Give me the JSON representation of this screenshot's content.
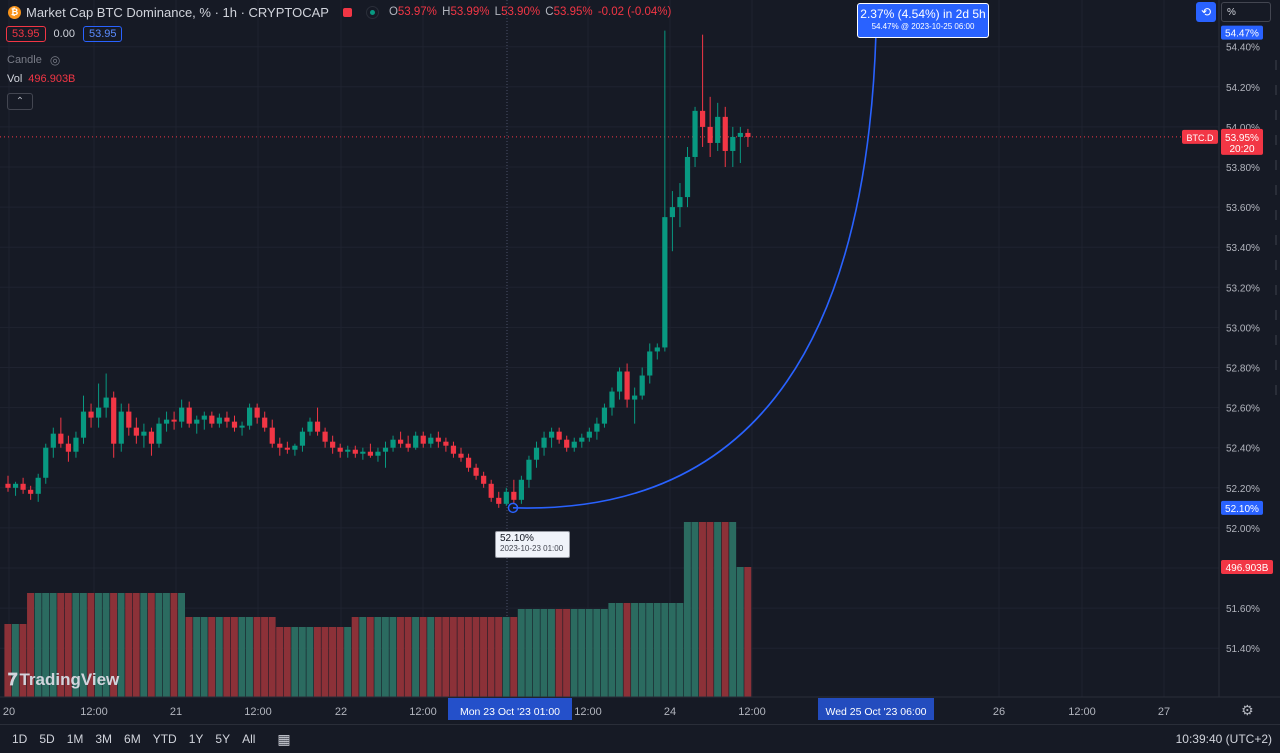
{
  "header": {
    "coin_glyph": "₿",
    "title": "Market Cap BTC Dominance, % · 1h · CRYPTOCAP",
    "ohlc": {
      "o_label": "O",
      "o": "53.97%",
      "h_label": "H",
      "h": "53.99%",
      "l_label": "L",
      "l": "53.90%",
      "c_label": "C",
      "c": "53.95%",
      "change": "-0.02 (-0.04%)"
    }
  },
  "bidask": {
    "bid": "53.95",
    "spread": "0.00",
    "ask": "53.95"
  },
  "legend": {
    "candle_label": "Candle",
    "eye_glyph": "◎",
    "vol_label": "Vol",
    "vol_value": "496.903B",
    "collapse_glyph": "⌃"
  },
  "toolbar": {
    "auto_glyph": "⟲",
    "percent_label": "%"
  },
  "branding": {
    "logo_glyph": "⁷",
    "logo_text": "TradingView"
  },
  "ranges": [
    "1D",
    "5D",
    "1M",
    "3M",
    "6M",
    "YTD",
    "1Y",
    "5Y",
    "All"
  ],
  "calendar_glyph": "📅",
  "clock": "10:39:40 (UTC+2)",
  "gear_glyph": "⚙",
  "measure": {
    "line1": "2.37% (4.54%) in 2d 5h",
    "line2": "54.47% @ 2023-10-25  06:00"
  },
  "tooltip": {
    "line1": "52.10%",
    "line2": "2023-10-23 01:00"
  },
  "colors": {
    "bg": "#161a25",
    "up": "#089981",
    "down": "#f23645",
    "accent": "#2962ff",
    "grid": "#1f2330"
  },
  "chart_data": {
    "type": "candlestick",
    "title": "Market Cap BTC Dominance, % · 1h · CRYPTOCAP",
    "ylim": [
      51.3,
      54.55
    ],
    "y_ticks": [
      "54.40%",
      "54.20%",
      "54.00%",
      "53.80%",
      "53.60%",
      "53.40%",
      "53.20%",
      "53.00%",
      "52.80%",
      "52.60%",
      "52.40%",
      "52.20%",
      "52.00%",
      "51.80%",
      "51.60%",
      "51.40%"
    ],
    "x_ticks": [
      "20",
      "12:00",
      "21",
      "12:00",
      "22",
      "12:00",
      "12:00",
      "24",
      "12:00",
      "26",
      "12:00",
      "27"
    ],
    "price_labels": {
      "top_marker": "54.47%",
      "last_symbol": "BTC.D",
      "last_price": "53.95%",
      "countdown": "20:20",
      "bottom_marker": "52.10%",
      "volume": "496.903B"
    },
    "x_highlights": {
      "start": "Mon 23 Oct '23   01:00",
      "end": "Wed 25 Oct '23   06:00"
    },
    "candles": [
      [
        52.22,
        52.26,
        52.18,
        52.2
      ],
      [
        52.2,
        52.23,
        52.16,
        52.22
      ],
      [
        52.22,
        52.25,
        52.17,
        52.19
      ],
      [
        52.19,
        52.21,
        52.14,
        52.17
      ],
      [
        52.17,
        52.27,
        52.13,
        52.25
      ],
      [
        52.25,
        52.42,
        52.22,
        52.4
      ],
      [
        52.4,
        52.5,
        52.35,
        52.47
      ],
      [
        52.47,
        52.55,
        52.4,
        52.42
      ],
      [
        52.42,
        52.46,
        52.33,
        52.38
      ],
      [
        52.38,
        52.48,
        52.35,
        52.45
      ],
      [
        52.45,
        52.66,
        52.42,
        52.58
      ],
      [
        52.58,
        52.62,
        52.5,
        52.55
      ],
      [
        52.55,
        52.72,
        52.5,
        52.6
      ],
      [
        52.6,
        52.77,
        52.55,
        52.65
      ],
      [
        52.65,
        52.68,
        52.35,
        52.42
      ],
      [
        52.42,
        52.62,
        52.38,
        52.58
      ],
      [
        52.58,
        52.62,
        52.46,
        52.5
      ],
      [
        52.5,
        52.55,
        52.42,
        52.46
      ],
      [
        52.46,
        52.52,
        52.4,
        52.48
      ],
      [
        52.48,
        52.5,
        52.36,
        52.42
      ],
      [
        52.42,
        52.55,
        52.4,
        52.52
      ],
      [
        52.52,
        52.58,
        52.48,
        52.54
      ],
      [
        52.54,
        52.58,
        52.49,
        52.53
      ],
      [
        52.53,
        52.64,
        52.5,
        52.6
      ],
      [
        52.6,
        52.63,
        52.5,
        52.52
      ],
      [
        52.52,
        52.56,
        52.47,
        52.54
      ],
      [
        52.54,
        52.58,
        52.49,
        52.56
      ],
      [
        52.56,
        52.58,
        52.5,
        52.52
      ],
      [
        52.52,
        52.57,
        52.5,
        52.55
      ],
      [
        52.55,
        52.58,
        52.5,
        52.53
      ],
      [
        52.53,
        52.56,
        52.48,
        52.5
      ],
      [
        52.5,
        52.53,
        52.46,
        52.51
      ],
      [
        52.51,
        52.62,
        52.49,
        52.6
      ],
      [
        52.6,
        52.62,
        52.52,
        52.55
      ],
      [
        52.55,
        52.58,
        52.48,
        52.5
      ],
      [
        52.5,
        52.54,
        52.4,
        52.42
      ],
      [
        52.42,
        52.45,
        52.36,
        52.4
      ],
      [
        52.4,
        52.43,
        52.37,
        52.39
      ],
      [
        52.39,
        52.42,
        52.36,
        52.41
      ],
      [
        52.41,
        52.5,
        52.38,
        52.48
      ],
      [
        52.48,
        52.55,
        52.46,
        52.53
      ],
      [
        52.53,
        52.6,
        52.46,
        52.48
      ],
      [
        52.48,
        52.5,
        52.4,
        52.43
      ],
      [
        52.43,
        52.46,
        52.37,
        52.4
      ],
      [
        52.4,
        52.42,
        52.35,
        52.38
      ],
      [
        52.38,
        52.41,
        52.35,
        52.39
      ],
      [
        52.39,
        52.41,
        52.35,
        52.37
      ],
      [
        52.37,
        52.4,
        52.34,
        52.38
      ],
      [
        52.38,
        52.42,
        52.35,
        52.36
      ],
      [
        52.36,
        52.4,
        52.33,
        52.38
      ],
      [
        52.38,
        52.43,
        52.3,
        52.4
      ],
      [
        52.4,
        52.46,
        52.38,
        52.44
      ],
      [
        52.44,
        52.48,
        52.4,
        52.42
      ],
      [
        52.42,
        52.46,
        52.38,
        52.4
      ],
      [
        52.4,
        52.48,
        52.39,
        52.46
      ],
      [
        52.46,
        52.48,
        52.4,
        52.42
      ],
      [
        52.42,
        52.47,
        52.4,
        52.45
      ],
      [
        52.45,
        52.48,
        52.4,
        52.43
      ],
      [
        52.43,
        52.45,
        52.38,
        52.41
      ],
      [
        52.41,
        52.43,
        52.35,
        52.37
      ],
      [
        52.37,
        52.4,
        52.33,
        52.35
      ],
      [
        52.35,
        52.37,
        52.28,
        52.3
      ],
      [
        52.3,
        52.32,
        52.24,
        52.26
      ],
      [
        52.26,
        52.28,
        52.2,
        52.22
      ],
      [
        52.22,
        52.24,
        52.13,
        52.15
      ],
      [
        52.15,
        52.18,
        52.1,
        52.12
      ],
      [
        52.12,
        52.2,
        52.11,
        52.18
      ],
      [
        52.18,
        52.24,
        52.12,
        52.14
      ],
      [
        52.14,
        52.26,
        52.12,
        52.24
      ],
      [
        52.24,
        52.36,
        52.2,
        52.34
      ],
      [
        52.34,
        52.43,
        52.3,
        52.4
      ],
      [
        52.4,
        52.48,
        52.36,
        52.45
      ],
      [
        52.45,
        52.5,
        52.4,
        52.48
      ],
      [
        52.48,
        52.5,
        52.42,
        52.44
      ],
      [
        52.44,
        52.46,
        52.38,
        52.4
      ],
      [
        52.4,
        52.45,
        52.38,
        52.43
      ],
      [
        52.43,
        52.47,
        52.4,
        52.45
      ],
      [
        52.45,
        52.5,
        52.43,
        52.48
      ],
      [
        52.48,
        52.55,
        52.44,
        52.52
      ],
      [
        52.52,
        52.62,
        52.5,
        52.6
      ],
      [
        52.6,
        52.7,
        52.56,
        52.68
      ],
      [
        52.68,
        52.8,
        52.64,
        52.78
      ],
      [
        52.78,
        52.82,
        52.6,
        52.64
      ],
      [
        52.64,
        52.7,
        52.52,
        52.66
      ],
      [
        52.66,
        52.8,
        52.64,
        52.76
      ],
      [
        52.76,
        52.92,
        52.72,
        52.88
      ],
      [
        52.88,
        52.92,
        52.84,
        52.9
      ],
      [
        52.9,
        54.48,
        52.88,
        53.55
      ],
      [
        53.55,
        53.68,
        53.38,
        53.6
      ],
      [
        53.6,
        53.72,
        53.5,
        53.65
      ],
      [
        53.65,
        53.9,
        53.6,
        53.85
      ],
      [
        53.85,
        54.1,
        53.8,
        54.08
      ],
      [
        54.08,
        54.46,
        53.9,
        54.0
      ],
      [
        54.0,
        54.15,
        53.85,
        53.92
      ],
      [
        53.92,
        54.12,
        53.88,
        54.05
      ],
      [
        54.05,
        54.1,
        53.8,
        53.88
      ],
      [
        53.88,
        54.0,
        53.8,
        53.95
      ],
      [
        53.95,
        54.0,
        53.82,
        53.97
      ],
      [
        53.97,
        53.99,
        53.9,
        53.95
      ]
    ],
    "volume": [
      46,
      46,
      46,
      46,
      46,
      46,
      46,
      46,
      46,
      46,
      46,
      46,
      46,
      46,
      46,
      46,
      46,
      46,
      46,
      46,
      46,
      46,
      46,
      46,
      46,
      46,
      46,
      46,
      46,
      46,
      46,
      46,
      46,
      46,
      46,
      46,
      46,
      46,
      46,
      46,
      46,
      46,
      46,
      46,
      46,
      46,
      46,
      46,
      46,
      46,
      46,
      46,
      46,
      46,
      46,
      46,
      46,
      46,
      46,
      46,
      46,
      46,
      46,
      46,
      46,
      46,
      46,
      46,
      46,
      46,
      46,
      46,
      46,
      46,
      46,
      46,
      46,
      46,
      46,
      46,
      46,
      46,
      46,
      46,
      46,
      46,
      46,
      46,
      46,
      46,
      46,
      46,
      46,
      46,
      46,
      46,
      46,
      46,
      46
    ]
  }
}
